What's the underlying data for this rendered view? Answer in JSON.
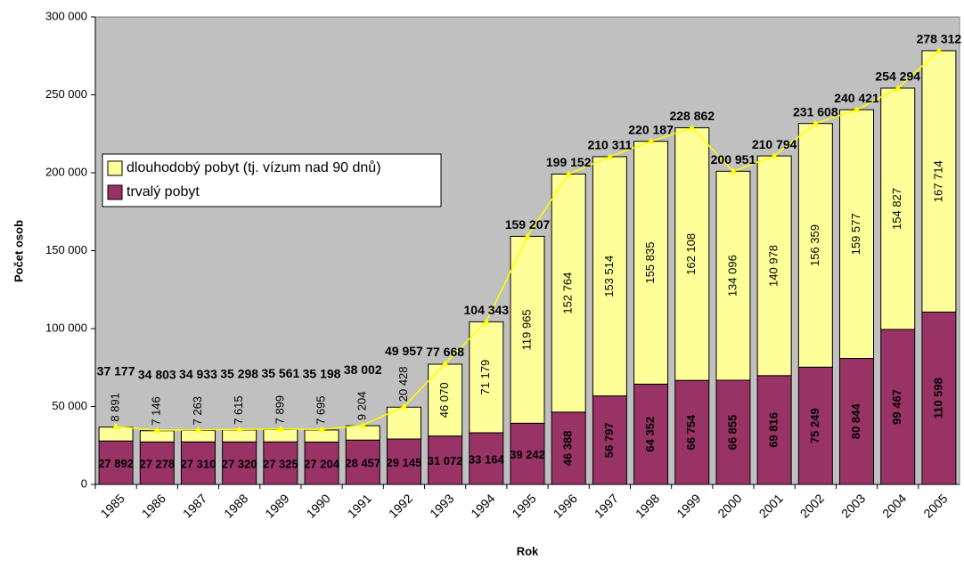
{
  "chart_data": {
    "type": "stacked_bar_line",
    "xlabel": "Rok",
    "ylabel": "Počet osob",
    "categories": [
      "1985",
      "1986",
      "1987",
      "1988",
      "1989",
      "1990",
      "1991",
      "1992",
      "1993",
      "1994",
      "1995",
      "1996",
      "1997",
      "1998",
      "1999",
      "2000",
      "2001",
      "2002",
      "2003",
      "2004",
      "2005"
    ],
    "series": [
      {
        "name": "trvalý pobyt",
        "color": "#993366",
        "values": [
          27892,
          27278,
          27310,
          27320,
          27325,
          27204,
          28457,
          29145,
          31072,
          33164,
          39242,
          46388,
          56797,
          64352,
          66754,
          66855,
          69816,
          75249,
          80844,
          99467,
          110598
        ],
        "value_labels": [
          "27 892",
          "27 278",
          "27 310",
          "27 320",
          "27 325",
          "27 204",
          "28 457",
          "29 145",
          "31 072",
          "33 164",
          "39 242",
          "46 388",
          "56 797",
          "64 352",
          "66 754",
          "66 855",
          "69 816",
          "75 249",
          "80 844",
          "99 467",
          "110 598"
        ]
      },
      {
        "name": "dlouhodobý pobyt (tj. vízum nad 90 dnů)",
        "color": "#ffff99",
        "values": [
          8891,
          7146,
          7263,
          7615,
          7899,
          7695,
          9204,
          20428,
          46070,
          71179,
          119965,
          152764,
          153514,
          155835,
          162108,
          134096,
          140978,
          156359,
          159577,
          154827,
          167714
        ],
        "value_labels": [
          "8 891",
          "7 146",
          "7 263",
          "7 615",
          "7 899",
          "7 695",
          "9 204",
          "20 428",
          "46 070",
          "71 179",
          "119 965",
          "152 764",
          "153 514",
          "155 835",
          "162 108",
          "134 096",
          "140 978",
          "156 359",
          "159 577",
          "154 827",
          "167 714"
        ]
      }
    ],
    "totals": {
      "color": "#ffff00",
      "values": [
        37177,
        34803,
        34933,
        35298,
        35561,
        35198,
        38002,
        49957,
        77668,
        104343,
        159207,
        199152,
        210311,
        220187,
        228862,
        200951,
        210794,
        231608,
        240421,
        254294,
        278312
      ],
      "value_labels": [
        "37 177",
        "34 803",
        "34 933",
        "35 298",
        "35 561",
        "35 198",
        "38 002",
        "49 957",
        "77 668",
        "104 343",
        "159 207",
        "199 152",
        "210 311",
        "220 187",
        "228 862",
        "200 951",
        "210 794",
        "231 608",
        "240 421",
        "254 294",
        "278 312"
      ]
    },
    "ylim": [
      0,
      300000
    ],
    "yticks": [
      0,
      {
        "value": 50000,
        "label": "50 000"
      },
      {
        "value": 100000,
        "label": "100 000"
      },
      {
        "value": 150000,
        "label": "150 000"
      },
      {
        "value": 200000,
        "label": "200 000"
      },
      {
        "value": 250000,
        "label": "250 000"
      },
      {
        "value": 300000,
        "label": "300 000"
      }
    ],
    "grid": false,
    "background": "#c0c0c0"
  }
}
